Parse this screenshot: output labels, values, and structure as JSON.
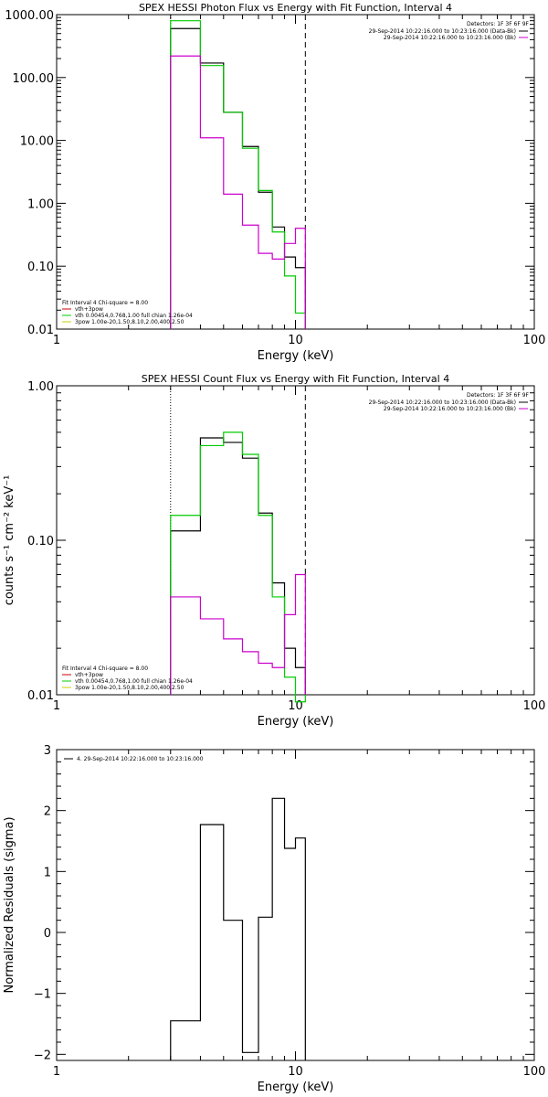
{
  "chart_data": [
    {
      "type": "line",
      "title": "SPEX HESSI Photon Flux vs Energy with Fit Function, Interval 4",
      "xlabel": "Energy (keV)",
      "ylabel": "",
      "xscale": "log",
      "yscale": "log",
      "xlim": [
        1,
        100
      ],
      "ylim": [
        0.01,
        1000
      ],
      "xticks": [
        "1",
        "10",
        "100"
      ],
      "yticks": [
        "1000.00",
        "100.00",
        "10.00",
        "1.00",
        "0.10",
        "0.01"
      ],
      "vlines": [
        {
          "x": 3,
          "style": "dotted"
        },
        {
          "x": 11,
          "style": "dashed"
        }
      ],
      "detectors": "Detectors: 1F 3F 6F 9F",
      "legend_top": [
        {
          "text": "29-Sep-2014 10:22:16.000 to 10:23:16.000 (Data-Bk)",
          "color": "#000000"
        },
        {
          "text": "29-Sep-2014 10:22:16.000 to 10:23:16.000 (Bk)",
          "color": "#cc00cc"
        }
      ],
      "legend_bottom": [
        {
          "text": "Fit Interval 4   Chi-square = 8.00",
          "color": ""
        },
        {
          "text": "vth+3pow",
          "color": "#cc0000"
        },
        {
          "text": "vth 0.00454,0.768,1.00  full chian 1.26e-04",
          "color": "#00cc00"
        },
        {
          "text": "3pow 1.00e-20,1.50,8.10,2.00,400,2.50",
          "color": "#cccc00"
        }
      ],
      "bin_edges": [
        3,
        4,
        5,
        6,
        7,
        8,
        9,
        10,
        11
      ],
      "series": [
        {
          "name": "Data-Bk",
          "color": "#000000",
          "values": [
            600,
            170,
            28,
            8,
            1.5,
            0.42,
            0.14,
            0.095
          ]
        },
        {
          "name": "Fit",
          "color": "#00cc00",
          "values": [
            800,
            155,
            28,
            7.5,
            1.6,
            0.35,
            0.07,
            0.018
          ]
        },
        {
          "name": "Bk",
          "color": "#cc00cc",
          "values": [
            220,
            11,
            1.4,
            0.45,
            0.16,
            0.13,
            0.23,
            0.4
          ]
        }
      ]
    },
    {
      "type": "line",
      "title": "SPEX HESSI Count Flux vs Energy with Fit Function, Interval 4",
      "xlabel": "Energy (keV)",
      "ylabel": "counts s⁻¹ cm⁻² keV⁻¹",
      "xscale": "log",
      "yscale": "log",
      "xlim": [
        1,
        100
      ],
      "ylim": [
        0.01,
        1
      ],
      "xticks": [
        "1",
        "10",
        "100"
      ],
      "yticks": [
        "1.00",
        "0.10",
        "0.01"
      ],
      "vlines": [
        {
          "x": 3,
          "style": "dotted"
        },
        {
          "x": 11,
          "style": "dashed"
        }
      ],
      "detectors": "Detectors: 1F 3F 6F 9F",
      "legend_top": [
        {
          "text": "29-Sep-2014 10:22:16.000 to 10:23:16.000 (Data-Bk)",
          "color": "#000000"
        },
        {
          "text": "29-Sep-2014 10:22:16.000 to 10:23:16.000 (Bk)",
          "color": "#cc00cc"
        }
      ],
      "legend_bottom": [
        {
          "text": "Fit Interval 4   Chi-square = 8.00",
          "color": ""
        },
        {
          "text": "vth+3pow",
          "color": "#cc0000"
        },
        {
          "text": "vth 0.00454,0.768,1.00  full chian 1.26e-04",
          "color": "#00cc00"
        },
        {
          "text": "3pow 1.00e-20,1.50,8.10,2.00,400,2.50",
          "color": "#cccc00"
        }
      ],
      "bin_edges": [
        3,
        4,
        5,
        6,
        7,
        8,
        9,
        10,
        11
      ],
      "series": [
        {
          "name": "Data-Bk",
          "color": "#000000",
          "values": [
            0.115,
            0.46,
            0.43,
            0.34,
            0.15,
            0.053,
            0.02,
            0.015
          ]
        },
        {
          "name": "Fit",
          "color": "#00cc00",
          "values": [
            0.145,
            0.41,
            0.5,
            0.36,
            0.145,
            0.043,
            0.013,
            0.009
          ]
        },
        {
          "name": "Bk",
          "color": "#cc00cc",
          "values": [
            0.043,
            0.031,
            0.023,
            0.019,
            0.016,
            0.015,
            0.033,
            0.06
          ]
        }
      ]
    },
    {
      "type": "line",
      "title": "",
      "xlabel": "Energy (keV)",
      "ylabel": "Normalized Residuals (sigma)",
      "xscale": "log",
      "yscale": "linear",
      "xlim": [
        1,
        100
      ],
      "ylim": [
        -2.1,
        3
      ],
      "xticks": [
        "1",
        "10",
        "100"
      ],
      "yticks": [
        "3",
        "2",
        "1",
        "0",
        "−1",
        "−2"
      ],
      "yticks_values": [
        3,
        2,
        1,
        0,
        -1,
        -2
      ],
      "vlines": [],
      "legend_top": [
        {
          "text": "4. 29-Sep-2014 10:22:16.000 to 10:23:16.000",
          "color": "#000000"
        }
      ],
      "legend_bottom": [],
      "bin_edges": [
        3,
        4,
        5,
        6,
        7,
        8,
        9,
        10,
        11
      ],
      "series": [
        {
          "name": "Residuals",
          "color": "#000000",
          "values": [
            -1.45,
            1.77,
            0.2,
            -1.97,
            0.25,
            2.2,
            1.38,
            1.55
          ]
        }
      ]
    }
  ]
}
